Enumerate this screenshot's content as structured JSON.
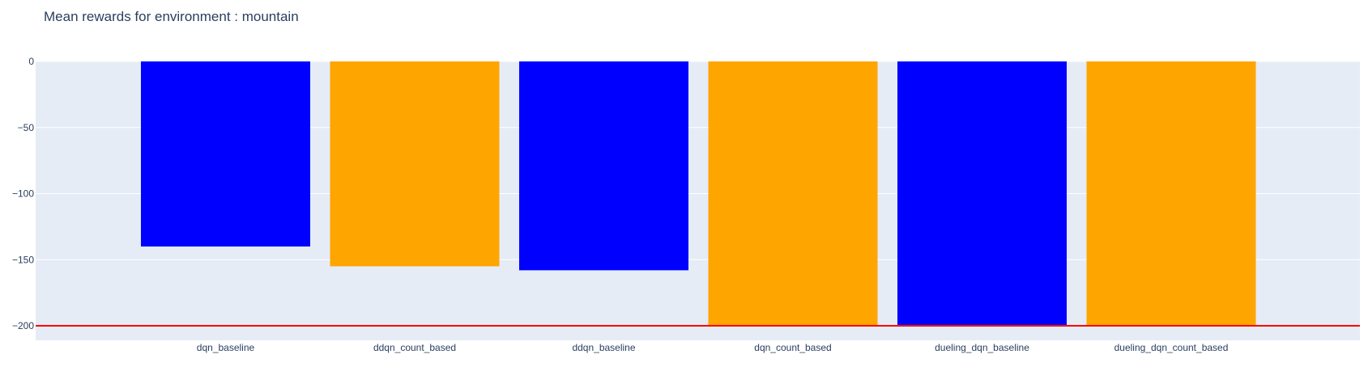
{
  "chart_data": {
    "type": "bar",
    "title": "Mean rewards for environment : mountain",
    "xlabel": "",
    "ylabel": "",
    "categories": [
      "dqn_baseline",
      "ddqn_count_based",
      "ddqn_baseline",
      "dqn_count_based",
      "dueling_dqn_baseline",
      "dueling_dqn_count_based"
    ],
    "values": [
      -140,
      -155,
      -158,
      -200,
      -200,
      -200
    ],
    "bar_colors": [
      "#0000ff",
      "#ffa500",
      "#0000ff",
      "#ffa500",
      "#0000ff",
      "#ffa500"
    ],
    "ylim": [
      -211,
      0
    ],
    "yticks": [
      0,
      -50,
      -100,
      -150,
      -200
    ],
    "ytick_labels": [
      "0",
      "−50",
      "−100",
      "−150",
      "−200"
    ],
    "reference_line": {
      "y": -200,
      "color": "#ff0000"
    },
    "grid": true,
    "legend": "none",
    "plot_bgcolor": "#e5ecf6",
    "gridcolor": "#ffffff",
    "text_color": "#2a3f5f"
  }
}
